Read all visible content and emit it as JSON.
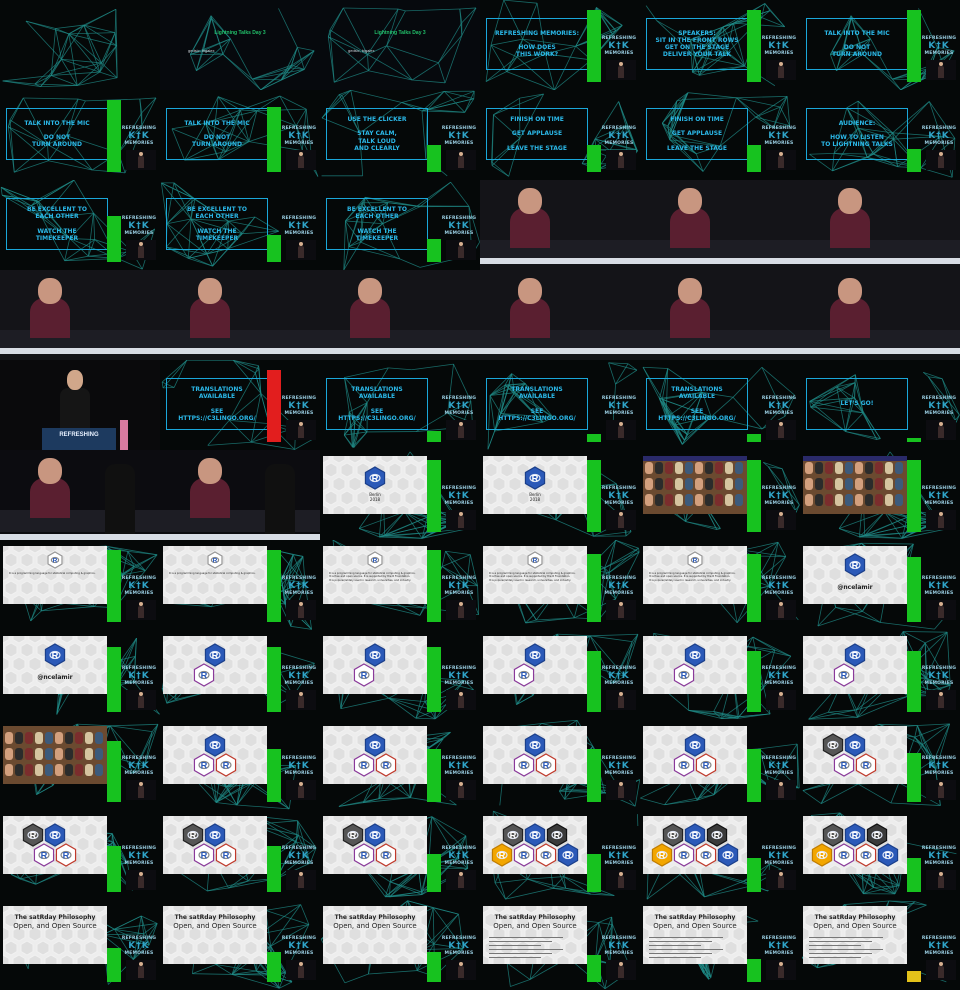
{
  "tiles": [
    {
      "kind": "dark-wave"
    },
    {
      "kind": "title",
      "title": "Lightning Talks Day 3",
      "sub": "gedsic, bigalex"
    },
    {
      "kind": "title",
      "title": "Lightning Talks Day 3",
      "sub": "gedsic, bigalex"
    },
    {
      "kind": "slide",
      "text": "REFRESHING MEMORIES:\n\nHOW DOES\nTHIS WORK?",
      "bar": "green",
      "barLevel": 0.95
    },
    {
      "kind": "slide",
      "text": "SPEAKERS:\nSIT IN THE FRONT ROWS\nGET ON THE STAGE\nDELIVER YOUR TALK",
      "bar": "green",
      "barLevel": 0.95
    },
    {
      "kind": "slide",
      "text": "TALK INTO THE MIC\n\nDO NOT\nTURN AROUND",
      "bar": "green",
      "barLevel": 0.95
    },
    {
      "kind": "slide",
      "text": "TALK INTO THE MIC\n\nDO NOT\nTURN AROUND",
      "bar": "green",
      "barLevel": 0.95
    },
    {
      "kind": "slide",
      "text": "TALK INTO THE MIC\n\nDO NOT\nTURN AROUND",
      "bar": "green",
      "barLevel": 0.85
    },
    {
      "kind": "slide",
      "text": "USE THE CLICKER\n\nSTAY CALM,\nTALK LOUD\nAND CLEARLY",
      "bar": "green",
      "barLevel": 0.35
    },
    {
      "kind": "slide",
      "text": "FINISH ON TIME\n\nGET APPLAUSE\n\nLEAVE THE STAGE",
      "bar": "green",
      "barLevel": 0.35
    },
    {
      "kind": "slide",
      "text": "FINISH ON TIME\n\nGET APPLAUSE\n\nLEAVE THE STAGE",
      "bar": "green",
      "barLevel": 0.35
    },
    {
      "kind": "slide",
      "text": "AUDIENCE:\n\nHOW TO LISTEN\nTO LIGHTNING TALKS",
      "bar": "green",
      "barLevel": 0.3
    },
    {
      "kind": "slide",
      "text": "BE EXCELLENT TO\nEACH OTHER\n\nWATCH THE\nTIMEKEEPER",
      "bar": "green",
      "barLevel": 0.6
    },
    {
      "kind": "slide",
      "text": "BE EXCELLENT TO\nEACH OTHER\n\nWATCH THE\nTIMEKEEPER",
      "bar": "green",
      "barLevel": 0.35
    },
    {
      "kind": "slide",
      "text": "BE EXCELLENT TO\nEACH OTHER\n\nWATCH THE\nTIMEKEEPER",
      "bar": "green",
      "barLevel": 0.3
    },
    {
      "kind": "stage"
    },
    {
      "kind": "stage"
    },
    {
      "kind": "stage"
    },
    {
      "kind": "stage"
    },
    {
      "kind": "stage"
    },
    {
      "kind": "stage"
    },
    {
      "kind": "stage"
    },
    {
      "kind": "stage"
    },
    {
      "kind": "stage"
    },
    {
      "kind": "speaker",
      "banner": "REFRESHING"
    },
    {
      "kind": "slide",
      "text": "TRANSLATIONS\nAVAILABLE\n\nSEE\nhttps://c3lingo.org/",
      "bar": "red",
      "barLevel": 0.95
    },
    {
      "kind": "slide",
      "text": "TRANSLATIONS\nAVAILABLE\n\nSEE\nhttps://c3lingo.org/",
      "bar": "green",
      "barLevel": 0.15
    },
    {
      "kind": "slide",
      "text": "TRANSLATIONS\nAVAILABLE\n\nSEE\nhttps://c3lingo.org/",
      "bar": "green",
      "barLevel": 0.1
    },
    {
      "kind": "slide",
      "text": "TRANSLATIONS\nAVAILABLE\n\nSEE\nhttps://c3lingo.org/",
      "bar": "green",
      "barLevel": 0.1
    },
    {
      "kind": "slide",
      "text": "LET'S GO!",
      "bar": "green",
      "barLevel": 0.05
    },
    {
      "kind": "stage2"
    },
    {
      "kind": "stage2"
    },
    {
      "kind": "rslide",
      "caption": "Berlin\n2018",
      "variant": "r-berlin",
      "barLevel": 0.95
    },
    {
      "kind": "rslide",
      "caption": "Berlin\n2018",
      "variant": "r-berlin",
      "barLevel": 0.95
    },
    {
      "kind": "crowd",
      "barLevel": 0.95
    },
    {
      "kind": "crowd",
      "barLevel": 0.95
    },
    {
      "kind": "rslide",
      "caption": "R is a programming language for statistical computing & graphics.",
      "variant": "r-text",
      "barLevel": 0.95
    },
    {
      "kind": "rslide",
      "caption": "R is a programming language for statistical computing & graphics.",
      "variant": "r-text",
      "barLevel": 0.95
    },
    {
      "kind": "rslide",
      "caption": "R is a programming language for statistical computing & graphics.\nIt is free and open source. It is supported by the R Foundation.\nIt is popular/widely used in research, universities, and industry.",
      "variant": "r-text2",
      "barLevel": 0.95
    },
    {
      "kind": "rslide",
      "caption": "R is a programming language for statistical computing & graphics.\nIt is free and open source. It is supported by the R Foundation.\nIt is popular/widely used in research, universities, and industry.",
      "variant": "r-text2",
      "barLevel": 0.9
    },
    {
      "kind": "rslide",
      "caption": "R is a programming language for statistical computing & graphics.\nIt is free and open source. It is supported by the R Foundation.\nIt is popular/widely used in research, universities, and industry.",
      "variant": "r-text2",
      "barLevel": 0.9
    },
    {
      "kind": "rslide",
      "caption": "@ncelamir",
      "variant": "r-handle",
      "barLevel": 0.85
    },
    {
      "kind": "rslide",
      "caption": "@ncelamir",
      "variant": "r-handle",
      "barLevel": 0.85
    },
    {
      "kind": "rslide",
      "caption": "",
      "variant": "r-two",
      "barLevel": 0.85
    },
    {
      "kind": "rslide",
      "caption": "",
      "variant": "r-two",
      "barLevel": 0.85
    },
    {
      "kind": "rslide",
      "caption": "",
      "variant": "r-two",
      "barLevel": 0.8
    },
    {
      "kind": "rslide",
      "caption": "",
      "variant": "r-two",
      "barLevel": 0.8
    },
    {
      "kind": "rslide",
      "caption": "",
      "variant": "r-two",
      "barLevel": 0.8
    },
    {
      "kind": "crowd2",
      "barLevel": 0.8
    },
    {
      "kind": "rslide",
      "caption": "",
      "variant": "r-three",
      "barLevel": 0.7
    },
    {
      "kind": "rslide",
      "caption": "",
      "variant": "r-three",
      "barLevel": 0.7
    },
    {
      "kind": "rslide",
      "caption": "",
      "variant": "r-three",
      "barLevel": 0.7
    },
    {
      "kind": "rslide",
      "caption": "",
      "variant": "r-three",
      "barLevel": 0.7
    },
    {
      "kind": "rslide",
      "caption": "",
      "variant": "r-four",
      "barLevel": 0.65
    },
    {
      "kind": "rslide",
      "caption": "",
      "variant": "r-four",
      "barLevel": 0.6
    },
    {
      "kind": "rslide",
      "caption": "",
      "variant": "r-four",
      "barLevel": 0.6
    },
    {
      "kind": "rslide",
      "caption": "",
      "variant": "r-four",
      "barLevel": 0.5
    },
    {
      "kind": "rslide",
      "caption": "",
      "variant": "r-six",
      "barLevel": 0.5
    },
    {
      "kind": "rslide",
      "caption": "",
      "variant": "r-six",
      "barLevel": 0.45
    },
    {
      "kind": "rslide",
      "caption": "",
      "variant": "r-six",
      "barLevel": 0.45
    },
    {
      "kind": "philo",
      "title": "The satRday Philosophy",
      "sub": "Open, and Open Source",
      "lines": false,
      "barLevel": 0.45
    },
    {
      "kind": "philo",
      "title": "The satRday Philosophy",
      "sub": "Open, and Open Source",
      "lines": false,
      "barLevel": 0.4
    },
    {
      "kind": "philo",
      "title": "The satRday Philosophy",
      "sub": "Open, and Open Source",
      "lines": false,
      "barLevel": 0.4
    },
    {
      "kind": "philo",
      "title": "The satRday Philosophy",
      "sub": "Open, and Open Source",
      "lines": true,
      "barLevel": 0.35
    },
    {
      "kind": "philo",
      "title": "The satRday Philosophy",
      "sub": "Open, and Open Source",
      "lines": true,
      "barLevel": 0.3
    },
    {
      "kind": "philo",
      "title": "The satRday Philosophy",
      "sub": "Open, and Open Source",
      "lines": true,
      "barLevel": 0.15,
      "barColor": "yellow"
    }
  ],
  "logo_text": {
    "top": "REFRESHING",
    "mid": "K†K",
    "bottom": "MEMORIES"
  },
  "colors": {
    "slide_text": "#2bb8e8",
    "bar_green": "#17c21f",
    "bar_red": "#e21e1e",
    "bar_yellow": "#e3c21a",
    "r_blue": "#2b59b8"
  }
}
